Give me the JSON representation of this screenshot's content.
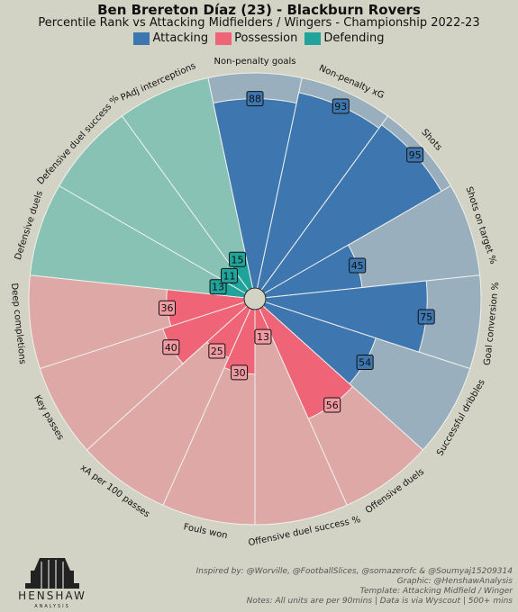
{
  "title": "Ben Brereton Díaz (23) - Blackburn Rovers",
  "subtitle": "Percentile Rank vs Attacking Midfielders / Wingers - Championship 2022-23",
  "legend": [
    {
      "label": "Attacking",
      "color": "#3e76b0"
    },
    {
      "label": "Possession",
      "color": "#ef6476"
    },
    {
      "label": "Defending",
      "color": "#1fa39b"
    }
  ],
  "colors": {
    "background": "#d3d3c5",
    "attacking_bg": "#9aafbd",
    "possession_bg": "#dea8a7",
    "defending_bg": "#87c2b4",
    "label_box_attacking": "#3e76b0",
    "label_box_possession": "#f09aa2",
    "label_box_defending": "#1fa39b"
  },
  "chart_data": {
    "type": "pie",
    "variant": "pizza / radial bar (percentile ranks)",
    "max_value": 100,
    "categories": [
      {
        "name": "Non-penalty goals",
        "group": "Attacking",
        "value": 88
      },
      {
        "name": "Non-penalty xG",
        "group": "Attacking",
        "value": 93
      },
      {
        "name": "Shots",
        "group": "Attacking",
        "value": 95
      },
      {
        "name": "Shots on target %",
        "group": "Attacking",
        "value": 45
      },
      {
        "name": "Goal conversion %",
        "group": "Attacking",
        "value": 75
      },
      {
        "name": "Successful dribbles",
        "group": "Attacking",
        "value": 54
      },
      {
        "name": "Offensive duels",
        "group": "Possession",
        "value": 56
      },
      {
        "name": "Offensive duel success %",
        "group": "Possession",
        "value": 13
      },
      {
        "name": "Fouls won",
        "group": "Possession",
        "value": 30
      },
      {
        "name": "xA per 100 passes",
        "group": "Possession",
        "value": 25
      },
      {
        "name": "Key passes",
        "group": "Possession",
        "value": 40
      },
      {
        "name": "Deep completions",
        "group": "Possession",
        "value": 36
      },
      {
        "name": "Defensive duels",
        "group": "Defending",
        "value": 13
      },
      {
        "name": "Defensive duel success %",
        "group": "Defending",
        "value": 11
      },
      {
        "name": "PAdj interceptions",
        "group": "Defending",
        "value": 15
      }
    ]
  },
  "logo": {
    "name": "HENSHAW",
    "sub": "ANALYSIS"
  },
  "credits": [
    "Inspired by: @Worville, @FootballSlices, @somazerofc & @Soumyaj15209314",
    "Graphic: @HenshawAnalysis",
    "Template: Attacking Midfield / Winger",
    "Notes: All units are per 90mins | Data is via Wyscout | 500+ mins"
  ]
}
